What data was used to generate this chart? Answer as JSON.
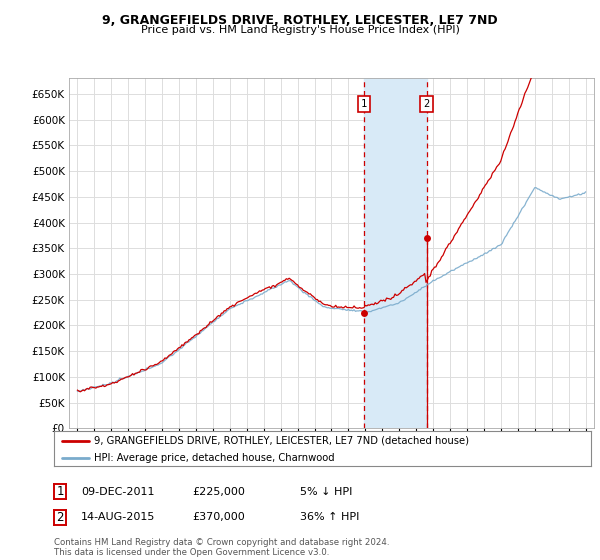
{
  "title": "9, GRANGEFIELDS DRIVE, ROTHLEY, LEICESTER, LE7 7ND",
  "subtitle": "Price paid vs. HM Land Registry's House Price Index (HPI)",
  "red_label": "9, GRANGEFIELDS DRIVE, ROTHLEY, LEICESTER, LE7 7ND (detached house)",
  "blue_label": "HPI: Average price, detached house, Charnwood",
  "annotation1_date": "09-DEC-2011",
  "annotation1_price": "£225,000",
  "annotation1_hpi": "5% ↓ HPI",
  "annotation1_year": 2011.92,
  "annotation1_value": 225000,
  "annotation2_date": "14-AUG-2015",
  "annotation2_price": "£370,000",
  "annotation2_hpi": "36% ↑ HPI",
  "annotation2_year": 2015.62,
  "annotation2_value": 370000,
  "ylim_min": 0,
  "ylim_max": 680000,
  "xlim_min": 1994.5,
  "xlim_max": 2025.5,
  "background_color": "#ffffff",
  "grid_color": "#dddddd",
  "red_color": "#cc0000",
  "blue_color": "#7aabcc",
  "shade_color": "#d8eaf7",
  "footnote": "Contains HM Land Registry data © Crown copyright and database right 2024.\nThis data is licensed under the Open Government Licence v3.0."
}
